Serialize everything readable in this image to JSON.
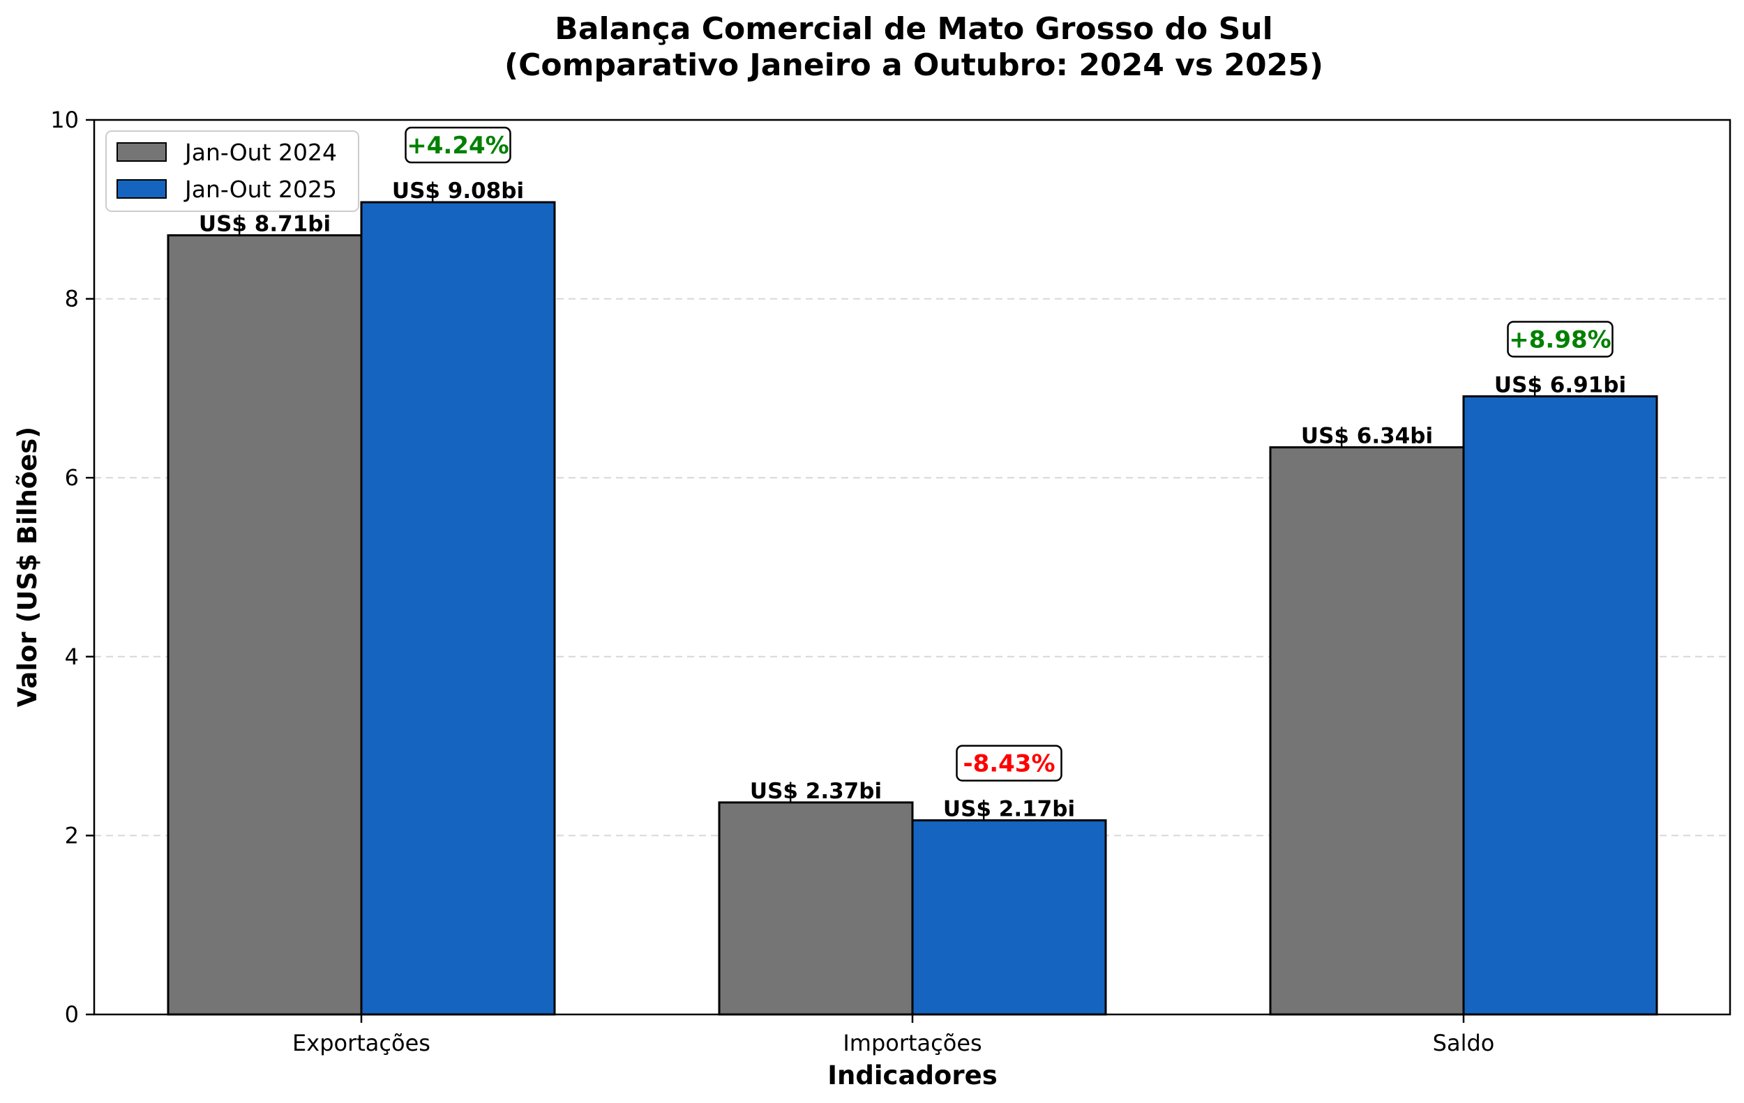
{
  "chart_data": {
    "type": "bar",
    "title": "Balança Comercial de Mato Grosso do Sul",
    "subtitle": "(Comparativo Janeiro a Outubro: 2024 vs 2025)",
    "xlabel": "Indicadores",
    "ylabel": "Valor (US$ Bilhões)",
    "ylim": [
      0,
      10
    ],
    "yticks": [
      "0",
      "2",
      "4",
      "6",
      "8",
      "10"
    ],
    "grid": "y-dashed",
    "legend_position": "top-left",
    "categories": [
      "Exportações",
      "Importações",
      "Saldo"
    ],
    "series": [
      {
        "name": "Jan-Out 2024",
        "color": "#757575",
        "values": [
          8.71,
          2.37,
          6.34
        ],
        "labels": [
          "US$ 8.71bi",
          "US$ 2.37bi",
          "US$ 6.34bi"
        ]
      },
      {
        "name": "Jan-Out 2025",
        "color": "#1565C0",
        "values": [
          9.08,
          2.17,
          6.91
        ],
        "labels": [
          "US$ 9.08bi",
          "US$ 2.17bi",
          "US$ 6.91bi"
        ]
      }
    ],
    "annotations": [
      {
        "category": "Exportações",
        "text": "+4.24%",
        "color": "#008000"
      },
      {
        "category": "Importações",
        "text": "-8.43%",
        "color": "#ff0000"
      },
      {
        "category": "Saldo",
        "text": "+8.98%",
        "color": "#008000"
      }
    ]
  }
}
